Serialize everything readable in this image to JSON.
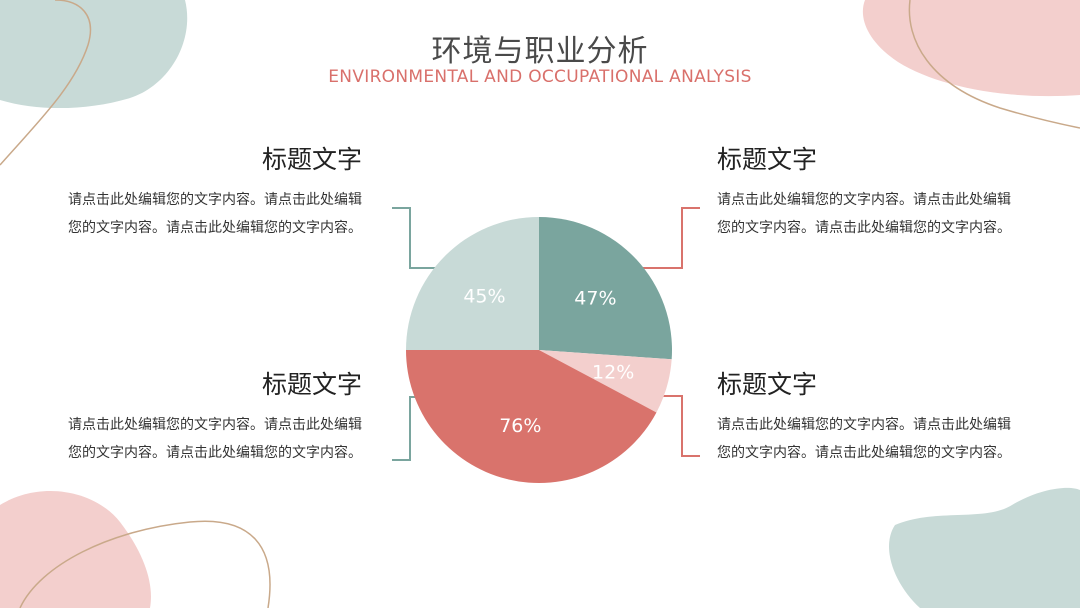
{
  "header": {
    "title": "环境与职业分析",
    "subtitle": "ENVIRONMENTAL AND OCCUPATIONAL ANALYSIS"
  },
  "blocks": [
    {
      "heading": "标题文字",
      "text": "请点击此处编辑您的文字内容。请点击此处编辑您的文字内容。请点击此处编辑您的文字内容。"
    },
    {
      "heading": "标题文字",
      "text": "请点击此处编辑您的文字内容。请点击此处编辑您的文字内容。请点击此处编辑您的文字内容。"
    },
    {
      "heading": "标题文字",
      "text": "请点击此处编辑您的文字内容。请点击此处编辑您的文字内容。请点击此处编辑您的文字内容。"
    },
    {
      "heading": "标题文字",
      "text": "请点击此处编辑您的文字内容。请点击此处编辑您的文字内容。请点击此处编辑您的文字内容。"
    }
  ],
  "colors": {
    "teal": "#7aa59e",
    "light_teal": "#c8dad7",
    "pink": "#f3cfcd",
    "red": "#d9736c",
    "title": "#4a4a4a",
    "subtitle": "#d9706b"
  },
  "chart_data": {
    "type": "pie",
    "slices": [
      {
        "label": "47%",
        "value": 47,
        "color": "#7aa59e"
      },
      {
        "label": "12%",
        "value": 12,
        "color": "#f3cfcd"
      },
      {
        "label": "76%",
        "value": 76,
        "color": "#d9736c"
      },
      {
        "label": "45%",
        "value": 45,
        "color": "#c8dad7"
      }
    ]
  }
}
